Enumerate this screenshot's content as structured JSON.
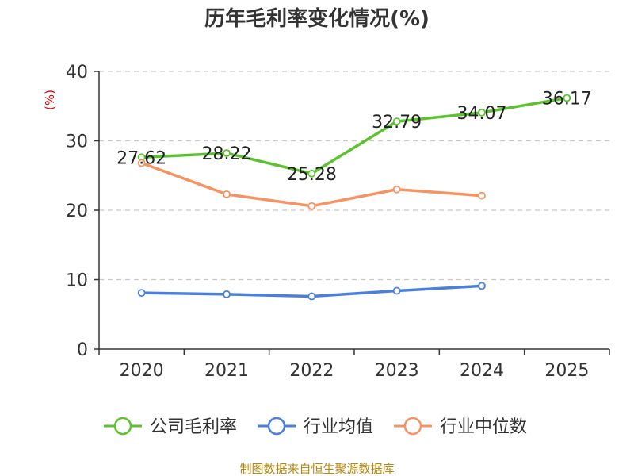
{
  "chart_data": {
    "type": "line",
    "title": "历年毛利率变化情况(%)",
    "ylabel": "(%)",
    "xlabel": "",
    "categories": [
      "2020",
      "2021",
      "2022",
      "2023",
      "2024",
      "2025"
    ],
    "ylim": [
      0,
      40
    ],
    "yticks": [
      0,
      10,
      20,
      30,
      40
    ],
    "grid": true,
    "legend_position": "bottom",
    "series": [
      {
        "name": "公司毛利率",
        "color": "#5cc22f",
        "values": [
          27.62,
          28.22,
          25.28,
          32.79,
          34.07,
          36.17
        ],
        "labels": [
          "27.62",
          "28.22",
          "25.28",
          "32.79",
          "34.07",
          "36.17"
        ]
      },
      {
        "name": "行业均值",
        "color": "#4a7fdc",
        "values": [
          8.1,
          7.9,
          7.6,
          8.4,
          9.1,
          null
        ],
        "labels": []
      },
      {
        "name": "行业中位数",
        "color": "#f59363",
        "values": [
          26.8,
          22.3,
          20.6,
          23.0,
          22.1,
          null
        ],
        "labels": []
      }
    ]
  },
  "source_text": "制图数据来自恒生聚源数据库"
}
